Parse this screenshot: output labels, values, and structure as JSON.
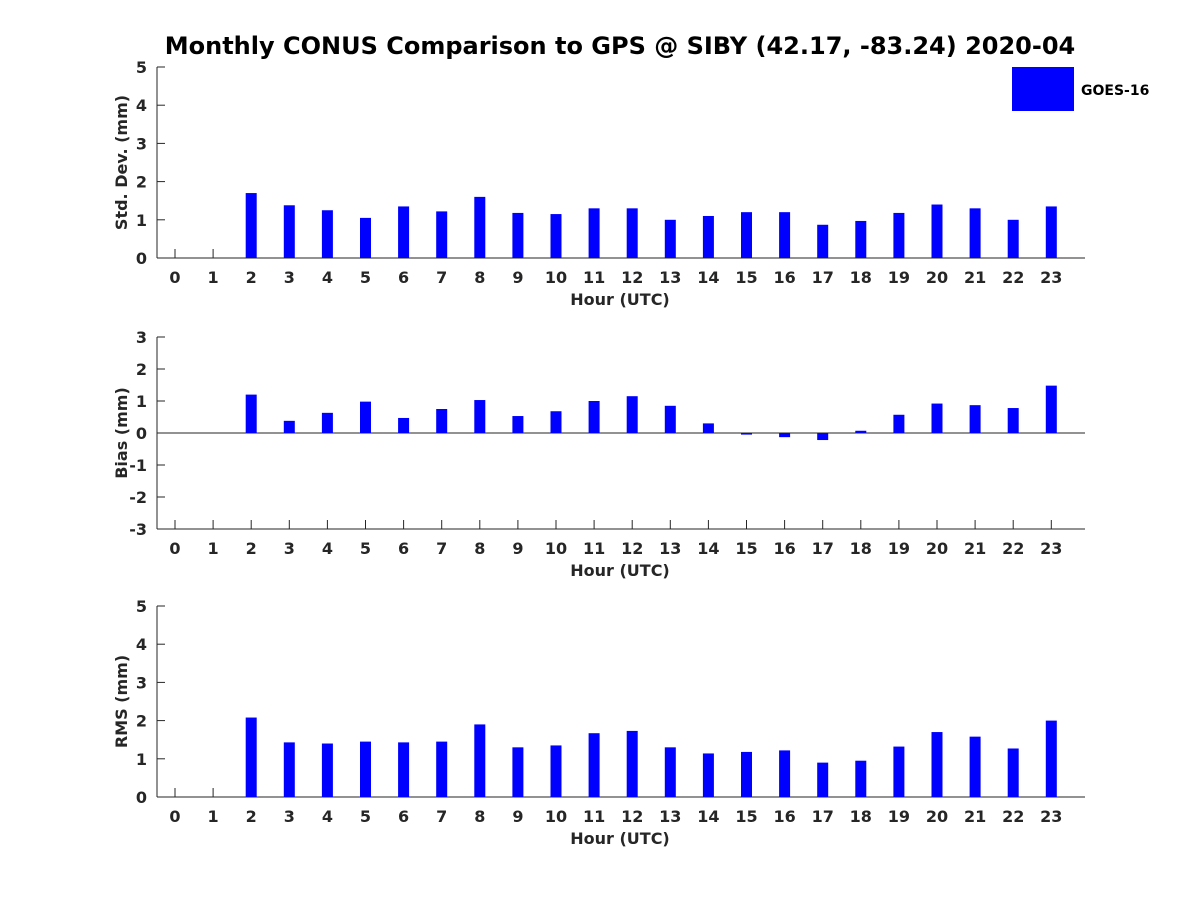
{
  "chart_data": {
    "title": "Monthly CONUS Comparison to GPS @ SIBY (42.17, -83.24) 2020-04",
    "legend": {
      "label": "GOES-16",
      "color": "#0000ff",
      "placement": "top-right"
    },
    "bar_color": "#0000ff",
    "panels": [
      {
        "type": "bar",
        "ylabel": "Std. Dev. (mm)",
        "xlabel": "Hour (UTC)",
        "ylim": [
          0,
          5
        ],
        "yticks": [
          "0",
          "1",
          "2",
          "3",
          "4",
          "5"
        ],
        "categories": [
          "0",
          "1",
          "2",
          "3",
          "4",
          "5",
          "6",
          "7",
          "8",
          "9",
          "10",
          "11",
          "12",
          "13",
          "14",
          "15",
          "16",
          "17",
          "18",
          "19",
          "20",
          "21",
          "22",
          "23"
        ],
        "values": [
          null,
          null,
          1.7,
          1.38,
          1.25,
          1.05,
          1.35,
          1.22,
          1.6,
          1.18,
          1.15,
          1.3,
          1.3,
          1.0,
          1.1,
          1.2,
          1.2,
          0.87,
          0.97,
          1.18,
          1.4,
          1.3,
          1.0,
          1.35
        ]
      },
      {
        "type": "bar",
        "ylabel": "Bias (mm)",
        "xlabel": "Hour (UTC)",
        "ylim": [
          -3,
          3
        ],
        "yticks": [
          "-3",
          "-2",
          "-1",
          "0",
          "1",
          "2",
          "3"
        ],
        "categories": [
          "0",
          "1",
          "2",
          "3",
          "4",
          "5",
          "6",
          "7",
          "8",
          "9",
          "10",
          "11",
          "12",
          "13",
          "14",
          "15",
          "16",
          "17",
          "18",
          "19",
          "20",
          "21",
          "22",
          "23"
        ],
        "values": [
          null,
          null,
          1.2,
          0.38,
          0.63,
          0.98,
          0.47,
          0.75,
          1.03,
          0.53,
          0.68,
          1.0,
          1.15,
          0.85,
          0.3,
          -0.05,
          -0.13,
          -0.22,
          0.07,
          0.57,
          0.92,
          0.87,
          0.78,
          1.48
        ]
      },
      {
        "type": "bar",
        "ylabel": "RMS (mm)",
        "xlabel": "Hour (UTC)",
        "ylim": [
          0,
          5
        ],
        "yticks": [
          "0",
          "1",
          "2",
          "3",
          "4",
          "5"
        ],
        "categories": [
          "0",
          "1",
          "2",
          "3",
          "4",
          "5",
          "6",
          "7",
          "8",
          "9",
          "10",
          "11",
          "12",
          "13",
          "14",
          "15",
          "16",
          "17",
          "18",
          "19",
          "20",
          "21",
          "22",
          "23"
        ],
        "values": [
          null,
          null,
          2.08,
          1.43,
          1.4,
          1.45,
          1.43,
          1.45,
          1.9,
          1.3,
          1.35,
          1.67,
          1.73,
          1.3,
          1.14,
          1.18,
          1.22,
          0.9,
          0.95,
          1.32,
          1.7,
          1.58,
          1.27,
          2.0
        ]
      }
    ]
  }
}
